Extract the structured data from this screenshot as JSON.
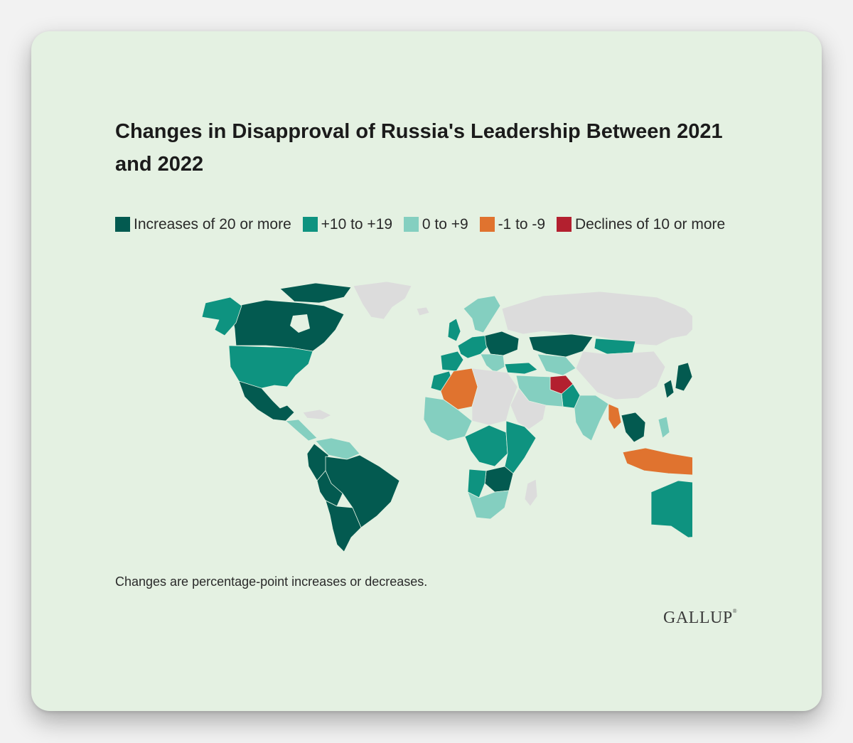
{
  "title": "Changes in Disapproval of Russia's Leadership Between 2021 and 2022",
  "legend": [
    {
      "label": "Increases of 20 or more",
      "color": "#035a50"
    },
    {
      "label": "+10 to +19",
      "color": "#0e9380"
    },
    {
      "label": "0 to +9",
      "color": "#84cfc0"
    },
    {
      "label": "-1 to -9",
      "color": "#e0732f"
    },
    {
      "label": "Declines of 10 or more",
      "color": "#b3202f"
    }
  ],
  "no_data_color": "#dcdcdc",
  "note": "Changes are percentage-point increases or decreases.",
  "logo": "GALLUP",
  "logo_mark": "®"
}
